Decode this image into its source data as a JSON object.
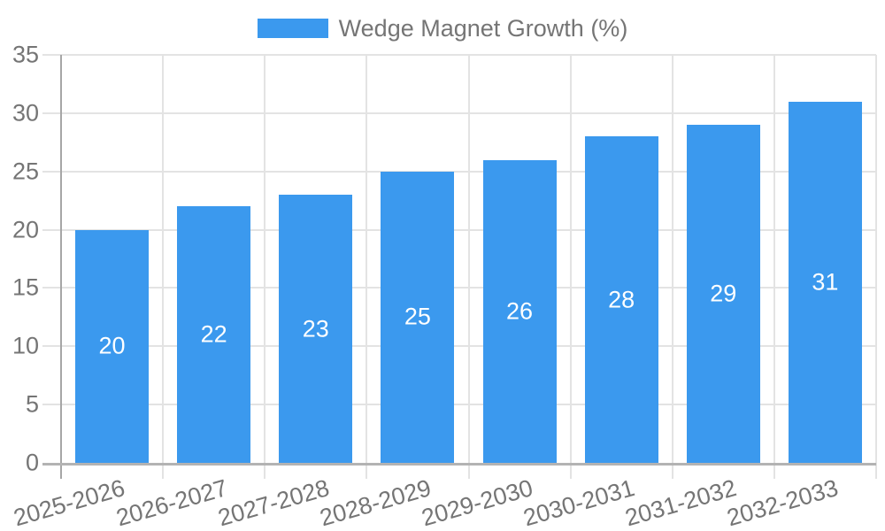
{
  "chart_data": {
    "type": "bar",
    "legend_label": "Wedge Magnet Growth (%)",
    "categories": [
      "2025-2026",
      "2026-2027",
      "2027-2028",
      "2028-2029",
      "2029-2030",
      "2030-2031",
      "2031-2032",
      "2032-2033"
    ],
    "values": [
      20,
      22,
      23,
      25,
      26,
      28,
      29,
      31
    ],
    "value_labels": [
      "20",
      "22",
      "23",
      "25",
      "26",
      "28",
      "29",
      "31"
    ],
    "ytick_labels": [
      "0",
      "5",
      "10",
      "15",
      "20",
      "25",
      "30",
      "35"
    ],
    "ylim": [
      0,
      35
    ],
    "ytick_step": 5,
    "grid": "on",
    "legend_position": "top-center",
    "xlabel": "",
    "ylabel": "",
    "colors": {
      "bar": "#3b99ee",
      "grid": "#e3e3e3",
      "axis_x": "#b3b3b3",
      "axis_y": "#a6a6a6",
      "tick_text": "#757575",
      "value_text": "#ffffff"
    }
  }
}
